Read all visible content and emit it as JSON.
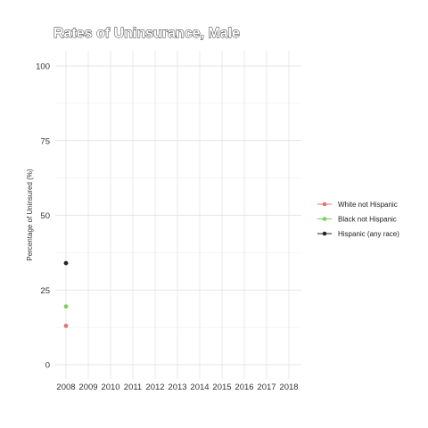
{
  "chart_data": {
    "type": "scatter",
    "title": "Rates of Uninsurance, Male",
    "xlabel": "",
    "ylabel": "Percentage of Uninsured (%)",
    "x_categories": [
      "2008",
      "2009",
      "2010",
      "2011",
      "2012",
      "2013",
      "2014",
      "2015",
      "2016",
      "2017",
      "2018"
    ],
    "y_ticks": [
      0,
      25,
      50,
      75,
      100
    ],
    "ylim": [
      0,
      100
    ],
    "grid": true,
    "legend_position": "right",
    "series": [
      {
        "name": "White not Hispanic",
        "color": "#E0766E",
        "points": [
          {
            "x": "2008",
            "y": 13
          }
        ]
      },
      {
        "name": "Black not Hispanic",
        "color": "#7ACF5D",
        "points": [
          {
            "x": "2008",
            "y": 19.5
          }
        ]
      },
      {
        "name": "Hispanic (any race)",
        "color": "#25232F",
        "points": [
          {
            "x": "2008",
            "y": 34
          }
        ]
      }
    ]
  }
}
